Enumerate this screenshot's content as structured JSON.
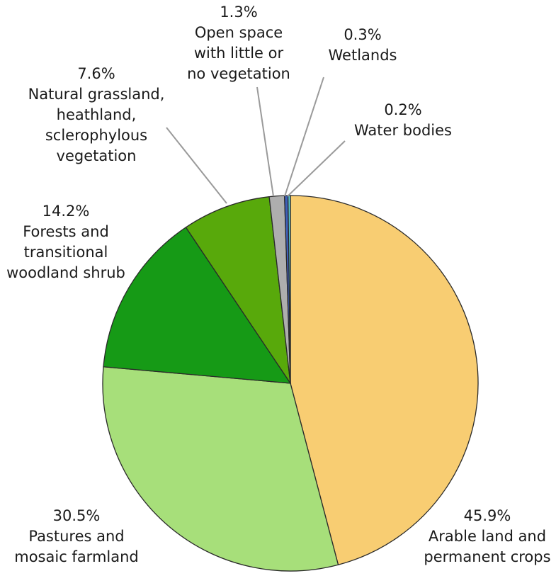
{
  "chart_data": {
    "type": "pie",
    "title": "",
    "unit": "%",
    "start_angle_deg": 0,
    "direction": "clockwise",
    "legend": "none",
    "slices": [
      {
        "key": "arable",
        "value": 45.9,
        "percent_label": "45.9%",
        "label_lines": [
          "Arable land and",
          "permanent crops"
        ],
        "color": "#f8cd72"
      },
      {
        "key": "pastures",
        "value": 30.5,
        "percent_label": "30.5%",
        "label_lines": [
          "Pastures and",
          "mosaic farmland"
        ],
        "color": "#a7df7a"
      },
      {
        "key": "forests",
        "value": 14.2,
        "percent_label": "14.2%",
        "label_lines": [
          "Forests and",
          "transitional",
          "woodland shrub"
        ],
        "color": "#169a16"
      },
      {
        "key": "grassland",
        "value": 7.6,
        "percent_label": "7.6%",
        "label_lines": [
          "Natural grassland,",
          "heathland,",
          "sclerophylous",
          "vegetation"
        ],
        "color": "#58a90b"
      },
      {
        "key": "open-space",
        "value": 1.3,
        "percent_label": "1.3%",
        "label_lines": [
          "Open space",
          "with little or",
          "no vegetation"
        ],
        "color": "#aeaeae"
      },
      {
        "key": "wetlands",
        "value": 0.3,
        "percent_label": "0.3%",
        "label_lines": [
          "Wetlands"
        ],
        "color": "#3f5fb8"
      },
      {
        "key": "water",
        "value": 0.2,
        "percent_label": "0.2%",
        "label_lines": [
          "Water bodies"
        ],
        "color": "#5ccfd6"
      }
    ]
  }
}
